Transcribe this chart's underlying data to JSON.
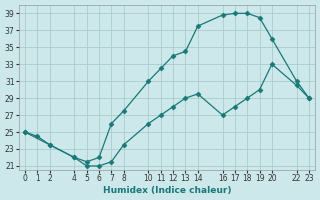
{
  "xlabel": "Humidex (Indice chaleur)",
  "bg_color": "#cce8ea",
  "grid_color": "#aacccc",
  "line_color": "#1a7878",
  "xlim": [
    -0.5,
    23.5
  ],
  "ylim": [
    20.5,
    40.0
  ],
  "xticks": [
    0,
    1,
    2,
    4,
    5,
    6,
    7,
    8,
    10,
    11,
    12,
    13,
    14,
    16,
    17,
    18,
    19,
    20,
    22,
    23
  ],
  "yticks": [
    21,
    23,
    25,
    27,
    29,
    31,
    33,
    35,
    37,
    39
  ],
  "line1_x": [
    0,
    1,
    2,
    4,
    5,
    6,
    7,
    8,
    10,
    11,
    12,
    13,
    14,
    16,
    17,
    18,
    19,
    20,
    22,
    23
  ],
  "line1_y": [
    25.0,
    24.5,
    23.5,
    22.0,
    21.5,
    22.0,
    26.0,
    27.5,
    31.0,
    32.5,
    34.0,
    34.5,
    37.5,
    38.8,
    39.0,
    39.0,
    38.5,
    36.0,
    31.0,
    29.0
  ],
  "line2_x": [
    0,
    2,
    4,
    5,
    6,
    7,
    8,
    10,
    11,
    12,
    13,
    14,
    16,
    17,
    18,
    19,
    20,
    22,
    23
  ],
  "line2_y": [
    25.0,
    23.5,
    22.0,
    21.0,
    21.0,
    21.5,
    23.5,
    26.0,
    27.0,
    28.0,
    29.0,
    29.5,
    27.0,
    28.0,
    29.0,
    30.0,
    33.0,
    30.5,
    29.0
  ]
}
